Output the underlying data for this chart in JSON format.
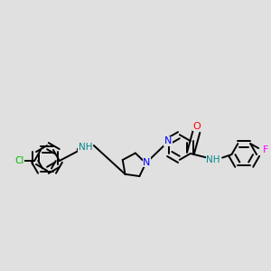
{
  "bg_color": "#e0e0e0",
  "bond_color": "#000000",
  "bond_width": 1.4,
  "atom_colors": {
    "N": "#0000ff",
    "O": "#ff0000",
    "Cl": "#00bb00",
    "F": "#ff00ff",
    "NH": "#008888",
    "C": "#000000"
  },
  "figsize": [
    3.0,
    3.0
  ],
  "dpi": 100
}
